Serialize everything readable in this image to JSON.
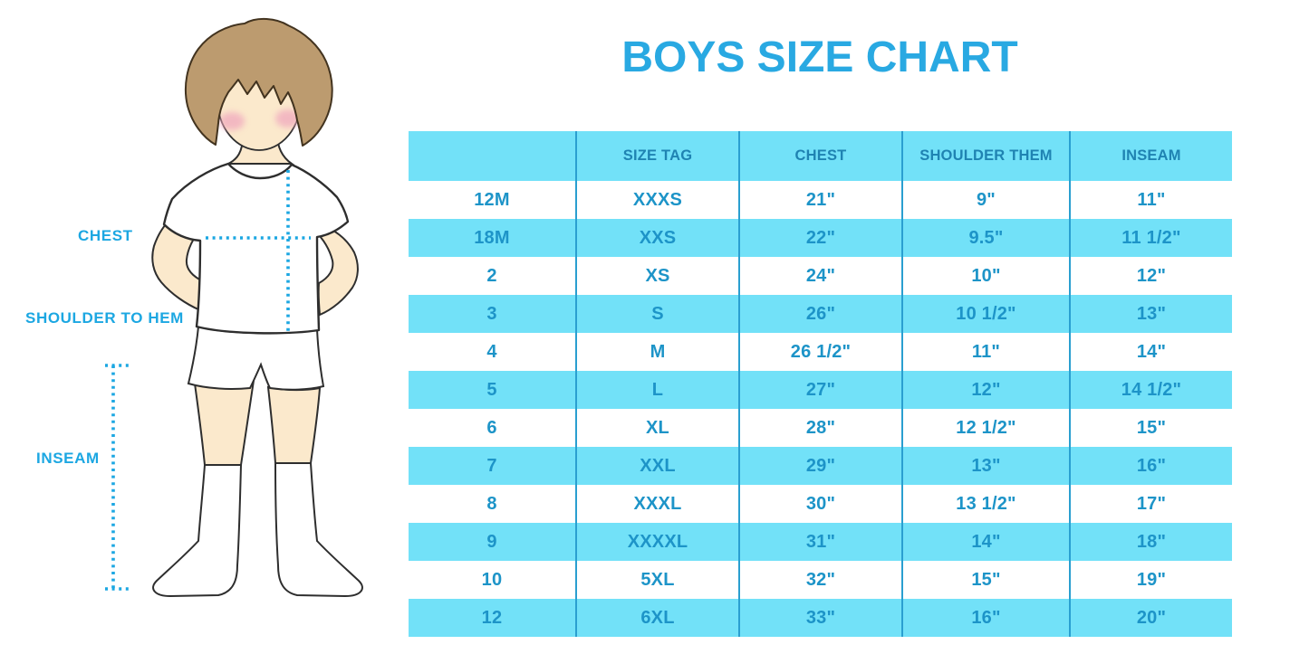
{
  "title": "BOYS SIZE CHART",
  "figure": {
    "labels": {
      "chest": "CHEST",
      "shoulder_to_hem": "SHOULDER TO HEM",
      "inseam": "INSEAM"
    }
  },
  "colors": {
    "band_cyan": "#72E1F8",
    "divider_blue": "#2A9FD0",
    "title_blue": "#29A9E2",
    "cell_text_blue": "#1D94C8",
    "header_text_blue": "#1F83B2",
    "measure_line_blue": "#1CA7E2"
  },
  "chart_data": {
    "type": "table",
    "title": "BOYS SIZE CHART",
    "columns": [
      "",
      "SIZE TAG",
      "CHEST",
      "SHOULDER THEM",
      "INSEAM"
    ],
    "rows": [
      [
        "12M",
        "XXXS",
        "21\"",
        "9\"",
        "11\""
      ],
      [
        "18M",
        "XXS",
        "22\"",
        "9.5\"",
        "11 1/2\""
      ],
      [
        "2",
        "XS",
        "24\"",
        "10\"",
        "12\""
      ],
      [
        "3",
        "S",
        "26\"",
        "10 1/2\"",
        "13\""
      ],
      [
        "4",
        "M",
        "26 1/2\"",
        "11\"",
        "14\""
      ],
      [
        "5",
        "L",
        "27\"",
        "12\"",
        "14 1/2\""
      ],
      [
        "6",
        "XL",
        "28\"",
        "12 1/2\"",
        "15\""
      ],
      [
        "7",
        "XXL",
        "29\"",
        "13\"",
        "16\""
      ],
      [
        "8",
        "XXXL",
        "30\"",
        "13 1/2\"",
        "17\""
      ],
      [
        "9",
        "XXXXL",
        "31\"",
        "14\"",
        "18\""
      ],
      [
        "10",
        "5XL",
        "32\"",
        "15\"",
        "19\""
      ],
      [
        "12",
        "6XL",
        "33\"",
        "16\"",
        "20\""
      ]
    ]
  }
}
